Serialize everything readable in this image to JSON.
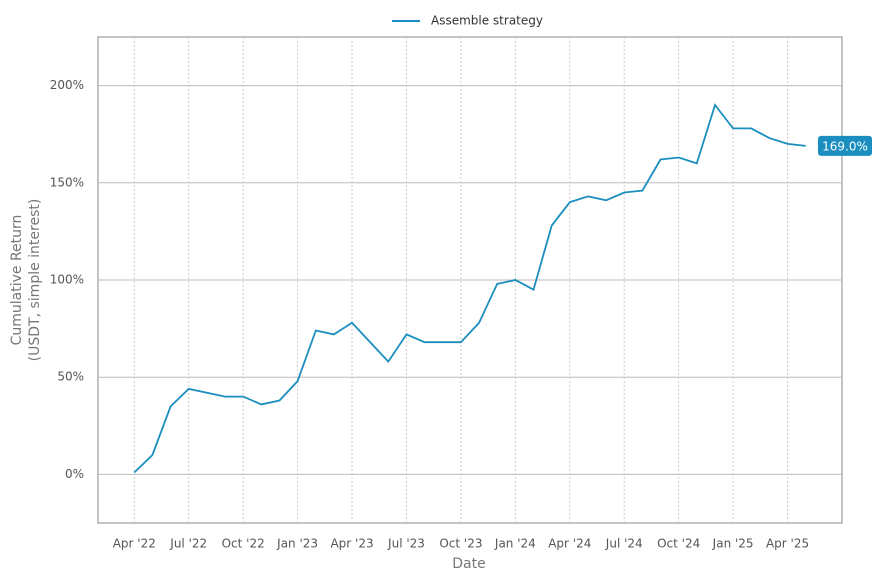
{
  "chart_data": {
    "type": "line",
    "xlabel": "Date",
    "ylabel": [
      "Cumulative Return",
      "(USDT, simple interest)"
    ],
    "x": [
      "2022-04",
      "2022-05",
      "2022-06",
      "2022-07",
      "2022-08",
      "2022-09",
      "2022-10",
      "2022-11",
      "2022-12",
      "2023-01",
      "2023-02",
      "2023-03",
      "2023-04",
      "2023-05",
      "2023-06",
      "2023-07",
      "2023-08",
      "2023-09",
      "2023-10",
      "2023-11",
      "2023-12",
      "2024-01",
      "2024-02",
      "2024-03",
      "2024-04",
      "2024-05",
      "2024-06",
      "2024-07",
      "2024-08",
      "2024-09",
      "2024-10",
      "2024-11",
      "2024-12",
      "2025-01",
      "2025-02",
      "2025-03",
      "2025-04",
      "2025-05"
    ],
    "series": [
      {
        "name": "Assemble strategy",
        "color": "#1a8ebf",
        "values": [
          1,
          10,
          35,
          44,
          42,
          40,
          40,
          36,
          38,
          48,
          74,
          72,
          78,
          68,
          58,
          72,
          68,
          68,
          68,
          78,
          98,
          100,
          95,
          128,
          140,
          143,
          141,
          145,
          146,
          162,
          163,
          160,
          190,
          178,
          178,
          173,
          170,
          169
        ]
      }
    ],
    "end_label": "169.0%",
    "xlim": [
      "2022-02",
      "2025-07"
    ],
    "xticks": [
      {
        "value": "2022-04",
        "label": "Apr '22"
      },
      {
        "value": "2022-07",
        "label": "Jul '22"
      },
      {
        "value": "2022-10",
        "label": "Oct '22"
      },
      {
        "value": "2023-01",
        "label": "Jan '23"
      },
      {
        "value": "2023-04",
        "label": "Apr '23"
      },
      {
        "value": "2023-07",
        "label": "Jul '23"
      },
      {
        "value": "2023-10",
        "label": "Oct '23"
      },
      {
        "value": "2024-01",
        "label": "Jan '24"
      },
      {
        "value": "2024-04",
        "label": "Apr '24"
      },
      {
        "value": "2024-07",
        "label": "Jul '24"
      },
      {
        "value": "2024-10",
        "label": "Oct '24"
      },
      {
        "value": "2025-01",
        "label": "Jan '25"
      },
      {
        "value": "2025-04",
        "label": "Apr '25"
      }
    ],
    "ylim": [
      -25,
      225
    ],
    "yticks": [
      {
        "value": 0,
        "label": "0%"
      },
      {
        "value": 50,
        "label": "50%"
      },
      {
        "value": 100,
        "label": "100%"
      },
      {
        "value": 150,
        "label": "150%"
      },
      {
        "value": 200,
        "label": "200%"
      }
    ],
    "grid": true,
    "legend": "top"
  }
}
